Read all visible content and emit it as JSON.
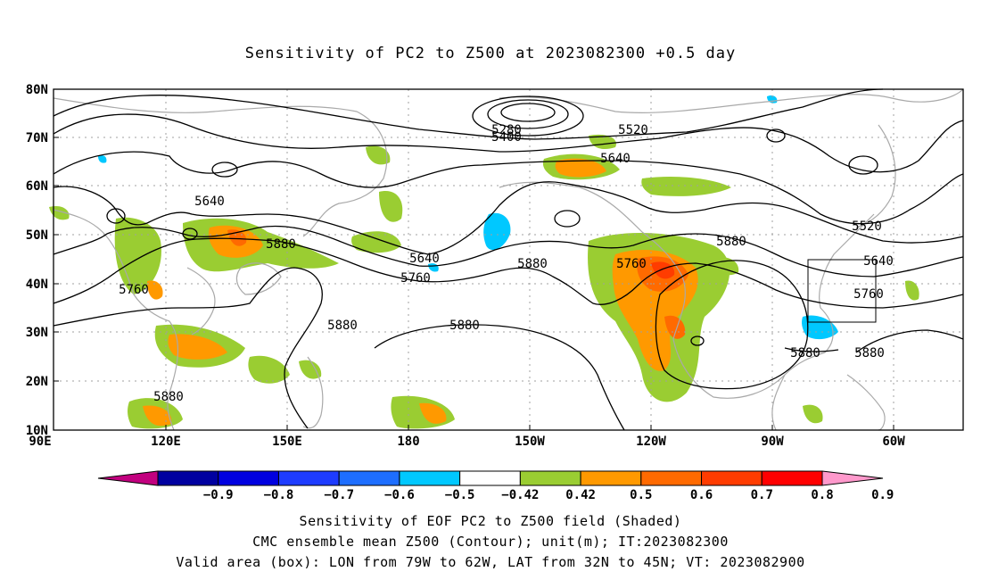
{
  "title": "Sensitivity of PC2 to Z500 at 2023082300 +0.5 day",
  "lat_labels": [
    "80N",
    "70N",
    "60N",
    "50N",
    "40N",
    "30N",
    "20N",
    "10N"
  ],
  "lon_labels": [
    "90E",
    "120E",
    "150E",
    "180",
    "150W",
    "120W",
    "90W",
    "60W"
  ],
  "contour_labels": [
    {
      "text": "5280",
      "id": "c1"
    },
    {
      "text": "5400",
      "id": "c2"
    },
    {
      "text": "5520",
      "id": "c3"
    },
    {
      "text": "5640",
      "id": "c4"
    },
    {
      "text": "5640",
      "id": "c5"
    },
    {
      "text": "5880",
      "id": "c6"
    },
    {
      "text": "5640",
      "id": "c7"
    },
    {
      "text": "5760",
      "id": "c8"
    },
    {
      "text": "5880",
      "id": "c9"
    },
    {
      "text": "5760",
      "id": "c10"
    },
    {
      "text": "5880",
      "id": "c11"
    },
    {
      "text": "5520",
      "id": "c12"
    },
    {
      "text": "5640",
      "id": "c13"
    },
    {
      "text": "5760",
      "id": "c14"
    },
    {
      "text": "5760",
      "id": "c15"
    },
    {
      "text": "5880",
      "id": "c16"
    },
    {
      "text": "5880",
      "id": "c17"
    },
    {
      "text": "5880",
      "id": "c18"
    },
    {
      "text": "5880",
      "id": "c19"
    },
    {
      "text": "5880",
      "id": "c20"
    }
  ],
  "colorbar": {
    "colors": [
      "#c2007f",
      "#0000a0",
      "#0000e0",
      "#1e3cff",
      "#1e6eff",
      "#00c8ff",
      "#ffffff",
      "#9acd32",
      "#ff9900",
      "#ff6a00",
      "#ff3c00",
      "#ff0000",
      "#ff99cc"
    ],
    "labels": [
      "-0.9",
      "-0.8",
      "-0.7",
      "-0.6",
      "-0.5",
      "-0.42",
      "0.42",
      "0.5",
      "0.6",
      "0.7",
      "0.8",
      "0.9"
    ]
  },
  "shading_colors": {
    "green": "#9acd32",
    "orange": "#ff9900",
    "darkorange": "#ff6a00",
    "red": "#ff3c00",
    "cyan": "#00c8ff"
  },
  "footer": [
    "Sensitivity of EOF PC2 to Z500 field (Shaded)",
    "CMC ensemble mean Z500 (Contour); unit(m); IT:2023082300",
    "Valid area (box): LON from 79W to 62W, LAT from 32N to 45N; VT: 2023082900"
  ]
}
